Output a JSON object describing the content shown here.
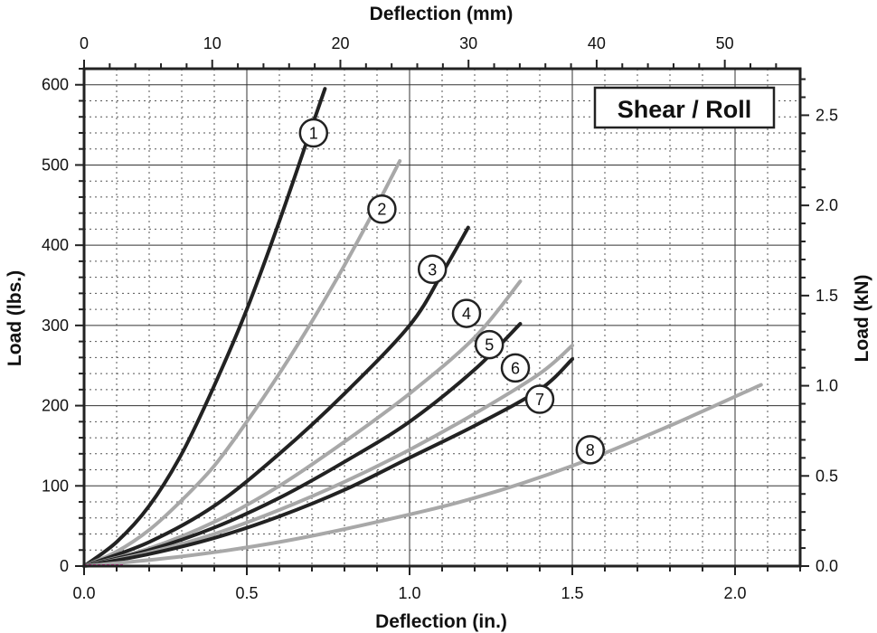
{
  "chart_data": {
    "type": "line",
    "xlabel_bottom": "Deflection (in.)",
    "xlabel_top": "Deflection (mm)",
    "ylabel_left": "Load (lbs.)",
    "ylabel_right": "Load (kN)",
    "box_label": "Shear / Roll",
    "xlim": [
      0,
      2.2
    ],
    "ylim": [
      0,
      620
    ],
    "x_ticks_bottom": [
      "0.0",
      "0.5",
      "1.0",
      "1.5",
      "2.0"
    ],
    "x_ticks_top": [
      "0",
      "10",
      "20",
      "30",
      "40",
      "50"
    ],
    "y_ticks_left": [
      "0",
      "100",
      "200",
      "300",
      "400",
      "500",
      "600"
    ],
    "y_ticks_right": [
      "0.0",
      "0.5",
      "1.0",
      "1.5",
      "2.0",
      "2.5"
    ],
    "grid": true,
    "series": [
      {
        "name": "1",
        "color": "#222222",
        "x": [
          0,
          0.1,
          0.2,
          0.3,
          0.4,
          0.5,
          0.6,
          0.7,
          0.74
        ],
        "y": [
          0,
          30,
          75,
          140,
          225,
          320,
          430,
          548,
          595
        ]
      },
      {
        "name": "2",
        "color": "#a8a8a8",
        "x": [
          0,
          0.1,
          0.2,
          0.3,
          0.4,
          0.5,
          0.6,
          0.7,
          0.8,
          0.9,
          0.97
        ],
        "y": [
          0,
          18,
          45,
          82,
          125,
          180,
          240,
          305,
          375,
          450,
          505
        ]
      },
      {
        "name": "3",
        "color": "#222222",
        "x": [
          0,
          0.2,
          0.4,
          0.6,
          0.8,
          1.0,
          1.1,
          1.18
        ],
        "y": [
          0,
          30,
          75,
          140,
          215,
          300,
          365,
          422
        ]
      },
      {
        "name": "4",
        "color": "#a8a8a8",
        "x": [
          0,
          0.2,
          0.4,
          0.6,
          0.8,
          1.0,
          1.2,
          1.34
        ],
        "y": [
          0,
          22,
          55,
          100,
          155,
          215,
          285,
          355
        ]
      },
      {
        "name": "5",
        "color": "#222222",
        "x": [
          0,
          0.2,
          0.4,
          0.6,
          0.8,
          1.0,
          1.2,
          1.34
        ],
        "y": [
          0,
          20,
          48,
          85,
          130,
          180,
          245,
          302
        ]
      },
      {
        "name": "6",
        "color": "#a8a8a8",
        "x": [
          0,
          0.2,
          0.4,
          0.6,
          0.8,
          1.0,
          1.2,
          1.4,
          1.5
        ],
        "y": [
          0,
          17,
          40,
          70,
          105,
          145,
          190,
          240,
          275
        ]
      },
      {
        "name": "7",
        "color": "#222222",
        "x": [
          0,
          0.2,
          0.4,
          0.6,
          0.8,
          1.0,
          1.2,
          1.4,
          1.5
        ],
        "y": [
          0,
          15,
          35,
          62,
          95,
          135,
          175,
          220,
          258
        ]
      },
      {
        "name": "8",
        "color": "#a8a8a8",
        "x": [
          0,
          0.3,
          0.6,
          0.9,
          1.2,
          1.5,
          1.8,
          2.08
        ],
        "y": [
          0,
          12,
          30,
          55,
          85,
          125,
          175,
          226
        ]
      }
    ],
    "curve_labels": [
      {
        "text": "1",
        "x": 0.705,
        "y": 540
      },
      {
        "text": "2",
        "x": 0.915,
        "y": 445
      },
      {
        "text": "3",
        "x": 1.07,
        "y": 370
      },
      {
        "text": "4",
        "x": 1.175,
        "y": 315
      },
      {
        "text": "5",
        "x": 1.245,
        "y": 276
      },
      {
        "text": "6",
        "x": 1.325,
        "y": 247
      },
      {
        "text": "7",
        "x": 1.4,
        "y": 208
      },
      {
        "text": "8",
        "x": 1.555,
        "y": 145
      }
    ]
  }
}
